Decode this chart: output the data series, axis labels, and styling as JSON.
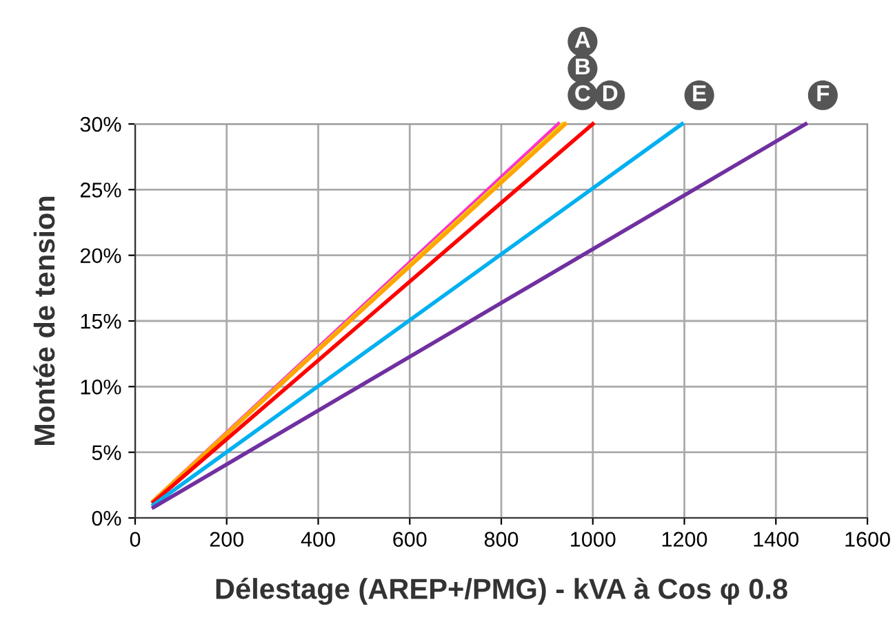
{
  "chart_data": {
    "type": "line",
    "xlabel": "Délestage (AREP+/PMG) - kVA à Cos φ 0.8",
    "ylabel": "Montée de tension",
    "xlim": [
      0,
      1600
    ],
    "xticks": [
      0,
      200,
      400,
      600,
      800,
      1000,
      1200,
      1400,
      1600
    ],
    "ylim": [
      0,
      30
    ],
    "yticks": [
      {
        "value": 0,
        "label": "0%"
      },
      {
        "value": 5,
        "label": "5%"
      },
      {
        "value": 10,
        "label": "10%"
      },
      {
        "value": 15,
        "label": "15%"
      },
      {
        "value": 20,
        "label": "20%"
      },
      {
        "value": 25,
        "label": "25%"
      },
      {
        "value": 30,
        "label": "30%"
      }
    ],
    "grid": true,
    "marker": "none",
    "line_style": "solid",
    "series": [
      {
        "color": "#ff33cc",
        "x": [
          40,
          925
        ],
        "values": [
          1.3,
          30
        ]
      },
      {
        "color": "#e8d800",
        "x": [
          40,
          935
        ],
        "values": [
          1.3,
          30
        ]
      },
      {
        "color": "#ffa500",
        "x": [
          40,
          940
        ],
        "values": [
          1.3,
          30
        ]
      },
      {
        "color": "#ff0000",
        "x": [
          40,
          1000
        ],
        "values": [
          1.2,
          30
        ]
      },
      {
        "color": "#00b0f0",
        "x": [
          40,
          1195
        ],
        "values": [
          1.0,
          30
        ]
      },
      {
        "color": "#7030a0",
        "x": [
          40,
          1465
        ],
        "values": [
          0.8,
          30
        ]
      }
    ],
    "annotations": [
      "A",
      "B",
      {
        "text": "C",
        "x": 940,
        "y": 30
      },
      {
        "text": "D",
        "x": 1000,
        "y": 30
      },
      {
        "text": "E",
        "x": 1195,
        "y": 30
      },
      {
        "text": "F",
        "x": 1465,
        "y": 30
      }
    ]
  }
}
